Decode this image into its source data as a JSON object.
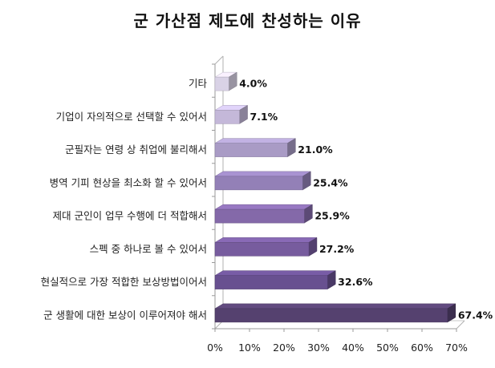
{
  "chart_data": {
    "type": "bar",
    "orientation": "horizontal",
    "title": "군 가산점 제도에 찬성하는 이유",
    "categories": [
      "기타",
      "기업이 자의적으로 선택할 수 있어서",
      "군필자는 연령 상 취업에 불리해서",
      "병역 기피 현상을 최소화 할 수 있어서",
      "제대 군인이 업무 수행에 더 적합해서",
      "스펙 중 하나로 볼 수 있어서",
      "현실적으로 가장 적합한 보상방법이어서",
      "군 생활에 대한 보상이 이루어져야 해서"
    ],
    "values": [
      4.0,
      7.1,
      21.0,
      25.4,
      25.9,
      27.2,
      32.6,
      67.4
    ],
    "value_labels": [
      "4.0%",
      "7.1%",
      "21.0%",
      "25.4%",
      "25.9%",
      "27.2%",
      "32.6%",
      "67.4%"
    ],
    "xlim": [
      0,
      70
    ],
    "x_ticks": [
      "0%",
      "10%",
      "20%",
      "30%",
      "40%",
      "50%",
      "60%",
      "70%"
    ],
    "xlabel": "",
    "ylabel": "",
    "grid": false,
    "legend": "none",
    "style": "3d",
    "colors": [
      "#d9d2e6",
      "#c4b8d9",
      "#a99bc5",
      "#9380b7",
      "#8469a9",
      "#775c9e",
      "#685090",
      "#55416f"
    ]
  }
}
